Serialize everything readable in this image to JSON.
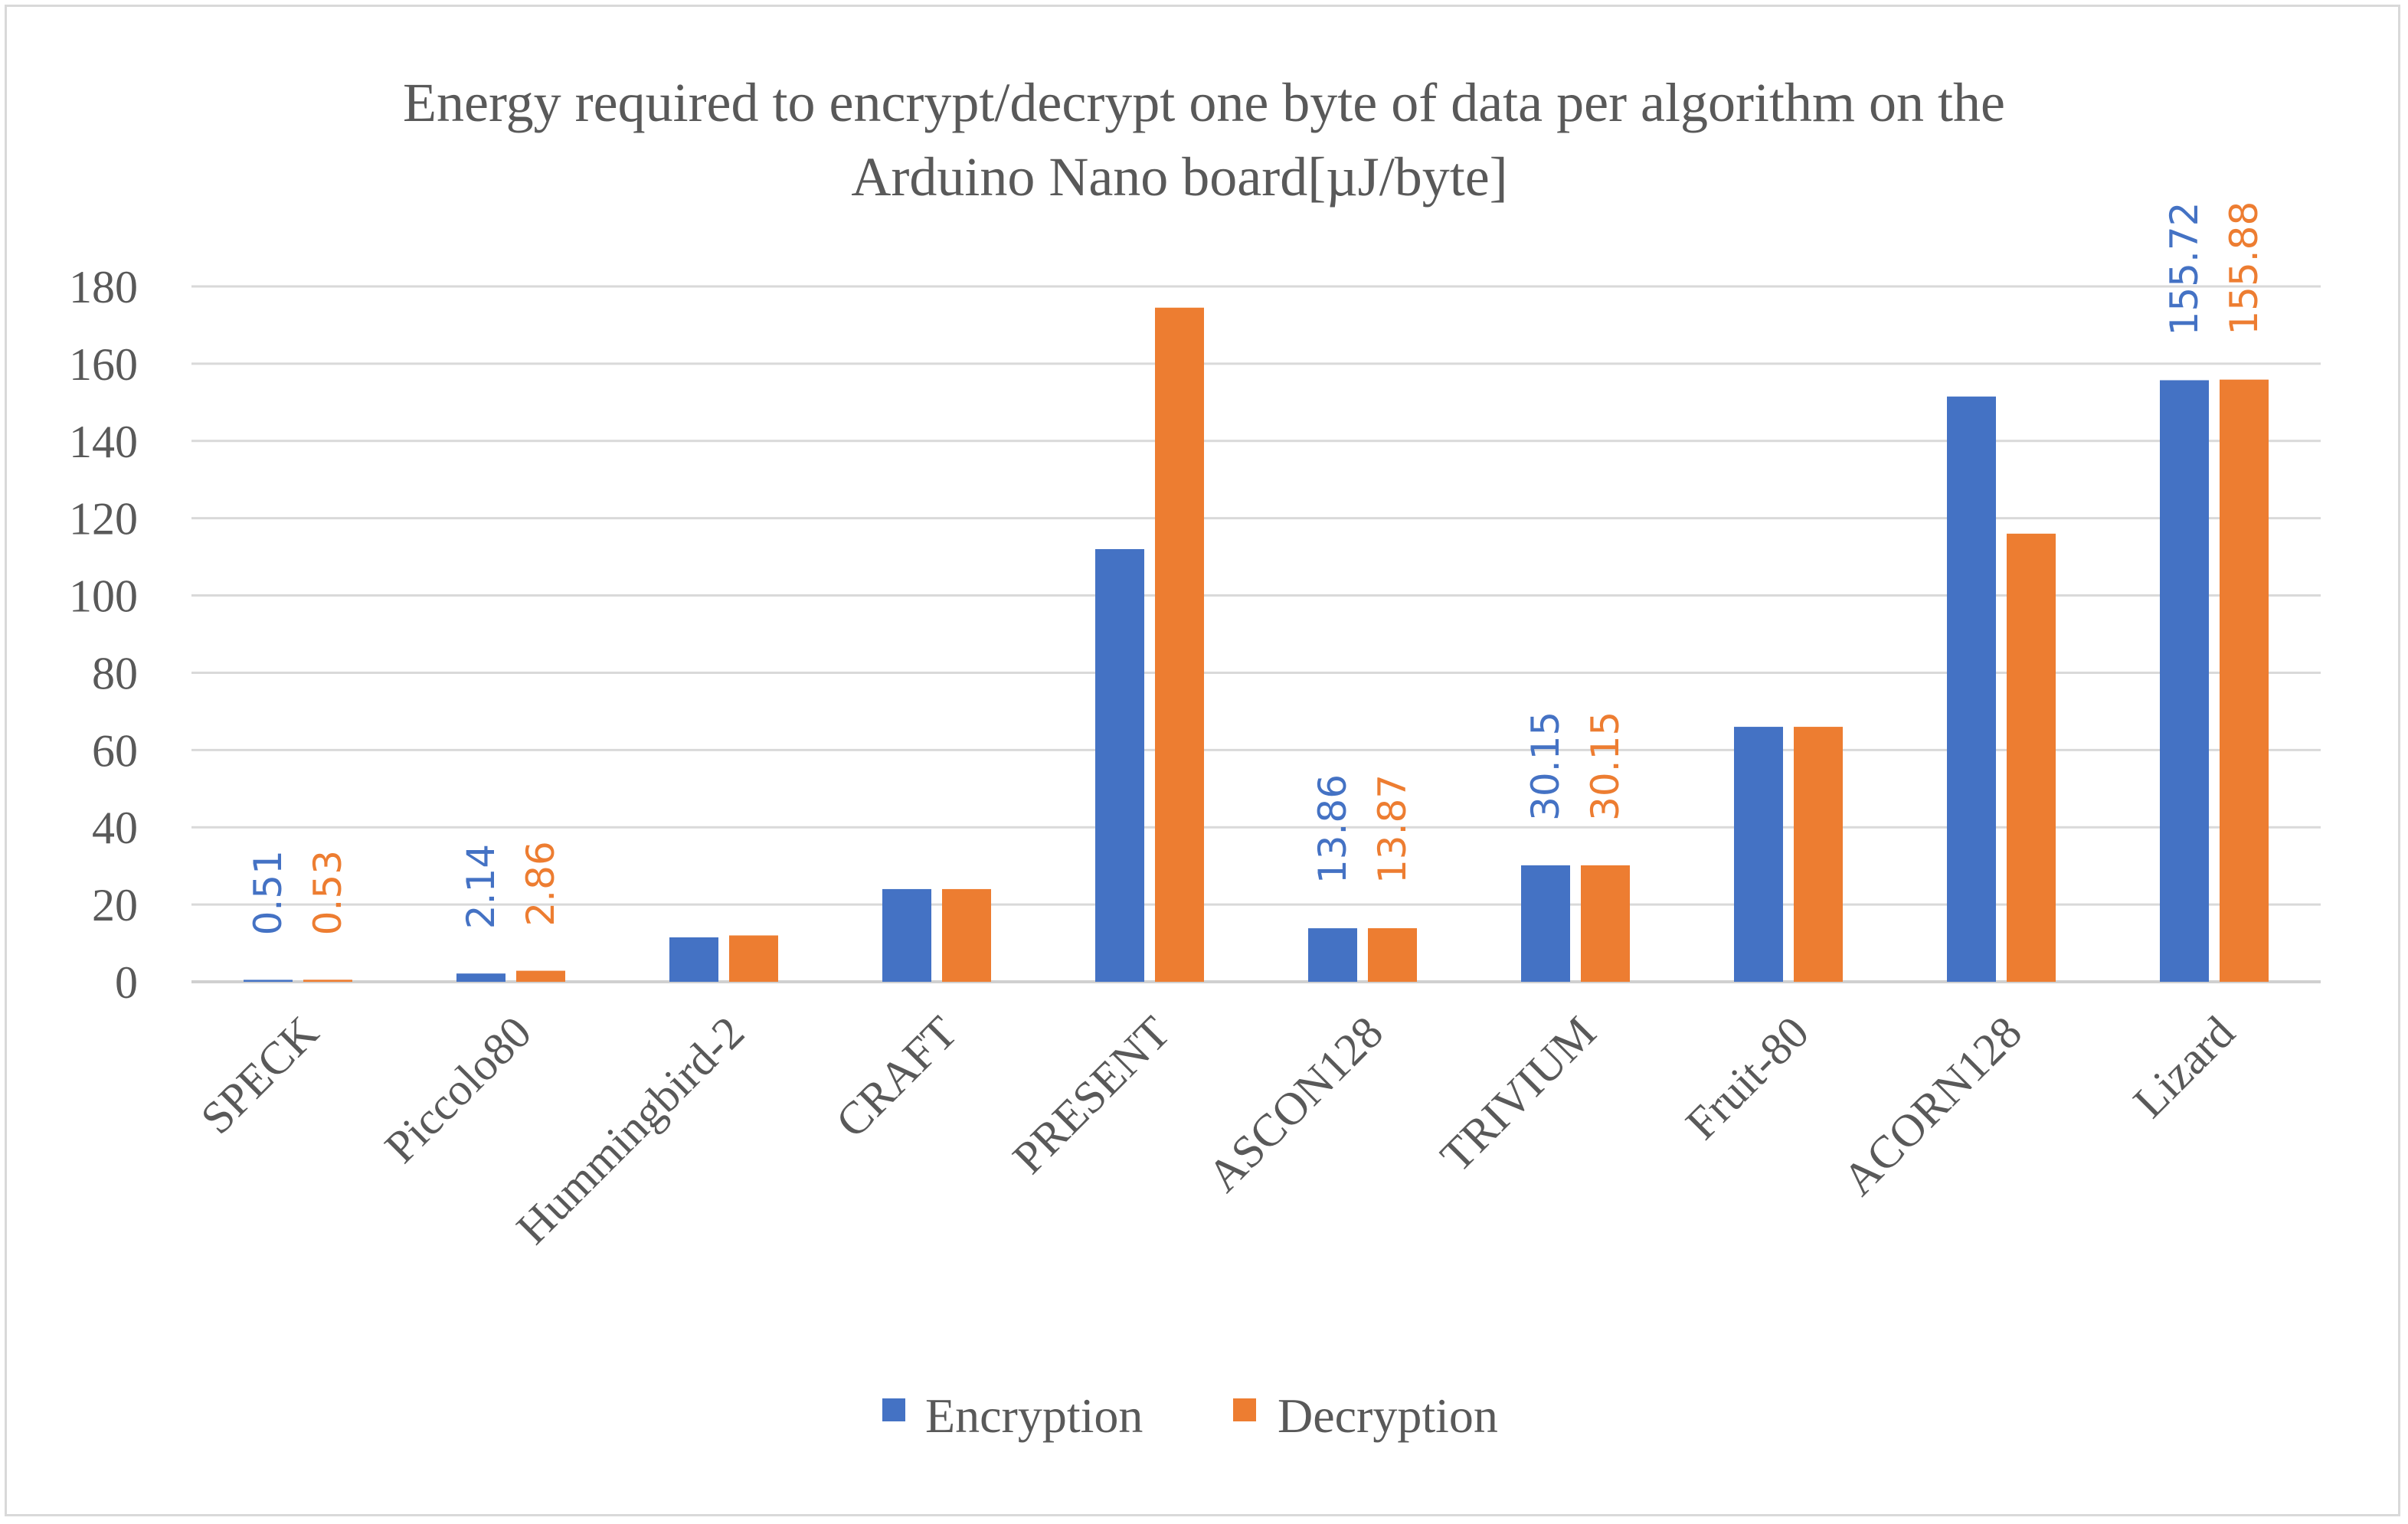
{
  "chart_data": {
    "type": "bar",
    "title": "Energy required to encrypt/decrypt one byte of data per algorithm on the Arduino Nano board[µJ/byte]",
    "title_lines": [
      "Energy required to encrypt/decrypt one byte of data per algorithm on the",
      "Arduino Nano board[µJ/byte]"
    ],
    "xlabel": "",
    "ylabel": "",
    "ylim": [
      0,
      180
    ],
    "yticks": [
      0,
      20,
      40,
      60,
      80,
      100,
      120,
      140,
      160,
      180
    ],
    "grid": true,
    "legend_position": "bottom",
    "categories": [
      "SPECK",
      "Piccolo80",
      "Hummingbird-2",
      "CRAFT",
      "PRESENT",
      "ASCON128",
      "TRIVIUM",
      "Fruit-80",
      "ACORN128",
      "Lizard"
    ],
    "series": [
      {
        "name": "Encryption",
        "color": "#4472c4",
        "values": [
          0.51,
          2.14,
          11.5,
          24.0,
          112.0,
          13.86,
          30.15,
          66.0,
          151.5,
          155.72
        ],
        "data_labels": [
          "0.51",
          "2.14",
          "",
          "",
          "",
          "13.86",
          "30.15",
          "",
          "",
          "155.72"
        ]
      },
      {
        "name": "Decryption",
        "color": "#ed7d31",
        "values": [
          0.53,
          2.86,
          12.0,
          24.0,
          174.5,
          13.87,
          30.15,
          66.0,
          116.0,
          155.88
        ],
        "data_labels": [
          "0.53",
          "2.86",
          "",
          "",
          "",
          "13.87",
          "30.15",
          "",
          "",
          "155.88"
        ]
      }
    ]
  }
}
